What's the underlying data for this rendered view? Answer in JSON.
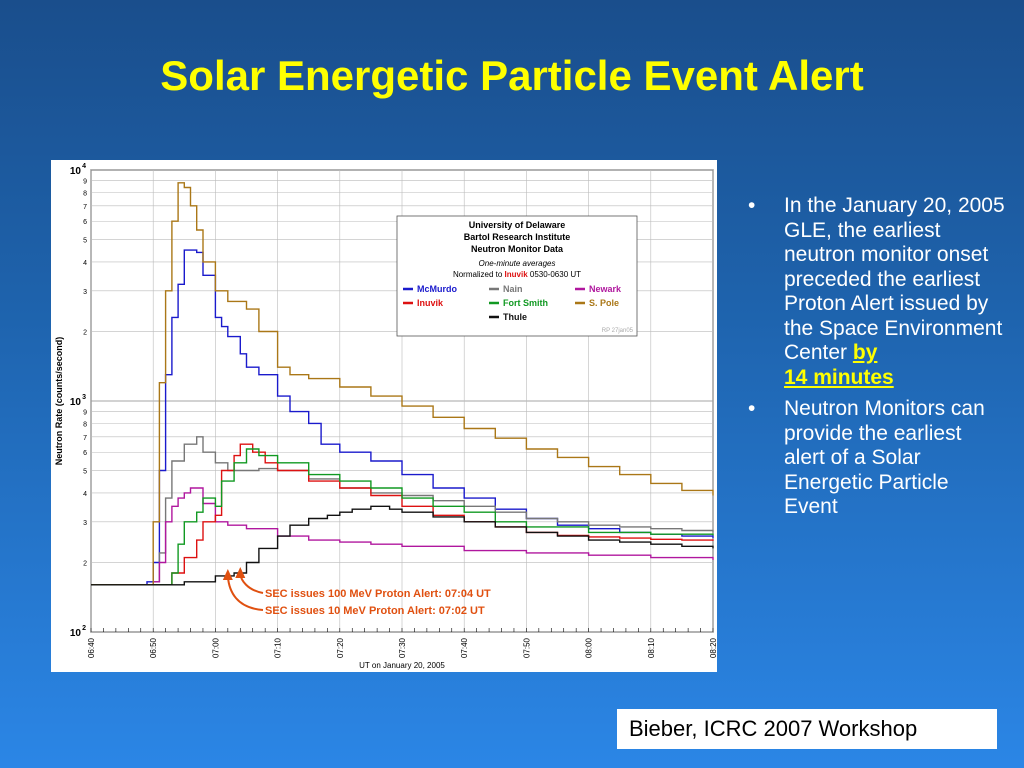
{
  "slide": {
    "title": "Solar Energetic Particle Event Alert",
    "citation": "Bieber, ICRC 2007 Workshop",
    "bullets": [
      {
        "text": "In the January 20, 2005 GLE, the earliest neutron monitor onset preceded the earliest Proton Alert issued by the Space Environment Center",
        "highlight_a": "by",
        "highlight_b": "14 minutes"
      },
      {
        "text": "Neutron Monitors can provide the earliest alert of a Solar Energetic Particle Event"
      }
    ],
    "colors": {
      "title": "#ffff00",
      "background_top": "#1a4e8c",
      "background_bottom": "#2b86e6",
      "highlight": "#ffff00",
      "annotation": "#e05010"
    }
  },
  "chart_data": {
    "type": "line",
    "xlabel": "UT on January 20, 2005",
    "ylabel": "Neutron Rate (counts/second)",
    "x_unit": "UT time",
    "xlim": [
      "06:40",
      "08:20"
    ],
    "x_ticks": [
      "06:40",
      "06:50",
      "07:00",
      "07:10",
      "07:20",
      "07:30",
      "07:40",
      "07:50",
      "08:00",
      "08:10",
      "08:20"
    ],
    "y_scale": "log",
    "ylim": [
      100,
      10000
    ],
    "y_major_ticks": [
      {
        "value": 100,
        "base": "10",
        "exp": "2"
      },
      {
        "value": 1000,
        "base": "10",
        "exp": "3"
      },
      {
        "value": 10000,
        "base": "10",
        "exp": "4"
      }
    ],
    "y_minor_ticks": [
      {
        "value": 200,
        "label": "2"
      },
      {
        "value": 300,
        "label": "3"
      },
      {
        "value": 400,
        "label": "4"
      },
      {
        "value": 500,
        "label": "5"
      },
      {
        "value": 600,
        "label": "6"
      },
      {
        "value": 700,
        "label": "7"
      },
      {
        "value": 800,
        "label": "8"
      },
      {
        "value": 900,
        "label": "9"
      },
      {
        "value": 2000,
        "label": "2"
      },
      {
        "value": 3000,
        "label": "3"
      },
      {
        "value": 4000,
        "label": "4"
      },
      {
        "value": 5000,
        "label": "5"
      },
      {
        "value": 6000,
        "label": "6"
      },
      {
        "value": 7000,
        "label": "7"
      },
      {
        "value": 8000,
        "label": "8"
      },
      {
        "value": 9000,
        "label": "9"
      }
    ],
    "grid": true,
    "legend": {
      "placement": "upper-right",
      "title_lines": [
        "University of Delaware",
        "Bartol Research Institute",
        "Neutron Monitor Data"
      ],
      "subtitle": "One-minute averages",
      "normalized_prefix": "Normalized to ",
      "normalized_station": "Inuvik",
      "normalized_suffix": " 0530-0630 UT",
      "signature": "RP 27jan05"
    },
    "annotations": [
      {
        "text": "SEC issues 100 MeV Proton Alert: 07:04 UT",
        "time": "07:04"
      },
      {
        "text": "SEC issues 10 MeV Proton Alert: 07:02 UT",
        "time": "07:02"
      }
    ],
    "series": [
      {
        "name": "McMurdo",
        "color": "#1a1acc",
        "points": [
          [
            "06:40",
            160
          ],
          [
            "06:45",
            160
          ],
          [
            "06:49",
            165
          ],
          [
            "06:50",
            200
          ],
          [
            "06:51",
            500
          ],
          [
            "06:52",
            1300
          ],
          [
            "06:53",
            2300
          ],
          [
            "06:54",
            3200
          ],
          [
            "06:55",
            4500
          ],
          [
            "06:57",
            4400
          ],
          [
            "06:58",
            3500
          ],
          [
            "07:00",
            2300
          ],
          [
            "07:01",
            2100
          ],
          [
            "07:02",
            1900
          ],
          [
            "07:04",
            1600
          ],
          [
            "07:05",
            1400
          ],
          [
            "07:07",
            1300
          ],
          [
            "07:10",
            1050
          ],
          [
            "07:12",
            900
          ],
          [
            "07:15",
            800
          ],
          [
            "07:17",
            650
          ],
          [
            "07:20",
            600
          ],
          [
            "07:25",
            550
          ],
          [
            "07:30",
            480
          ],
          [
            "07:35",
            420
          ],
          [
            "07:40",
            380
          ],
          [
            "07:45",
            340
          ],
          [
            "07:50",
            310
          ],
          [
            "07:55",
            290
          ],
          [
            "08:00",
            280
          ],
          [
            "08:05",
            270
          ],
          [
            "08:10",
            265
          ],
          [
            "08:15",
            260
          ],
          [
            "08:20",
            255
          ]
        ]
      },
      {
        "name": "Nain",
        "color": "#777777",
        "points": [
          [
            "06:40",
            160
          ],
          [
            "06:50",
            165
          ],
          [
            "06:51",
            220
          ],
          [
            "06:52",
            380
          ],
          [
            "06:53",
            550
          ],
          [
            "06:55",
            650
          ],
          [
            "06:57",
            700
          ],
          [
            "06:58",
            600
          ],
          [
            "07:00",
            540
          ],
          [
            "07:02",
            500
          ],
          [
            "07:05",
            500
          ],
          [
            "07:07",
            510
          ],
          [
            "07:10",
            500
          ],
          [
            "07:15",
            460
          ],
          [
            "07:20",
            420
          ],
          [
            "07:25",
            400
          ],
          [
            "07:30",
            390
          ],
          [
            "07:35",
            370
          ],
          [
            "07:40",
            350
          ],
          [
            "07:45",
            330
          ],
          [
            "07:50",
            310
          ],
          [
            "07:55",
            300
          ],
          [
            "08:00",
            290
          ],
          [
            "08:05",
            285
          ],
          [
            "08:10",
            280
          ],
          [
            "08:15",
            275
          ],
          [
            "08:20",
            270
          ]
        ]
      },
      {
        "name": "Newark",
        "color": "#b0179e",
        "points": [
          [
            "06:40",
            160
          ],
          [
            "06:50",
            165
          ],
          [
            "06:51",
            200
          ],
          [
            "06:52",
            300
          ],
          [
            "06:53",
            350
          ],
          [
            "06:54",
            380
          ],
          [
            "06:55",
            400
          ],
          [
            "06:56",
            420
          ],
          [
            "06:58",
            360
          ],
          [
            "07:00",
            300
          ],
          [
            "07:02",
            290
          ],
          [
            "07:05",
            280
          ],
          [
            "07:10",
            260
          ],
          [
            "07:15",
            250
          ],
          [
            "07:20",
            245
          ],
          [
            "07:25",
            240
          ],
          [
            "07:30",
            235
          ],
          [
            "07:40",
            225
          ],
          [
            "07:50",
            220
          ],
          [
            "08:00",
            215
          ],
          [
            "08:10",
            210
          ],
          [
            "08:20",
            205
          ]
        ]
      },
      {
        "name": "Inuvik",
        "color": "#dd1111",
        "points": [
          [
            "06:40",
            160
          ],
          [
            "06:52",
            160
          ],
          [
            "06:53",
            180
          ],
          [
            "06:55",
            210
          ],
          [
            "06:57",
            250
          ],
          [
            "06:58",
            300
          ],
          [
            "07:00",
            320
          ],
          [
            "07:01",
            500
          ],
          [
            "07:03",
            580
          ],
          [
            "07:04",
            650
          ],
          [
            "07:06",
            600
          ],
          [
            "07:08",
            540
          ],
          [
            "07:10",
            500
          ],
          [
            "07:15",
            450
          ],
          [
            "07:20",
            420
          ],
          [
            "07:25",
            390
          ],
          [
            "07:30",
            350
          ],
          [
            "07:35",
            320
          ],
          [
            "07:40",
            300
          ],
          [
            "07:45",
            285
          ],
          [
            "07:50",
            270
          ],
          [
            "07:55",
            262
          ],
          [
            "08:00",
            258
          ],
          [
            "08:05",
            255
          ],
          [
            "08:10",
            252
          ],
          [
            "08:15",
            250
          ],
          [
            "08:20",
            248
          ]
        ]
      },
      {
        "name": "Fort Smith",
        "color": "#119922",
        "points": [
          [
            "06:40",
            160
          ],
          [
            "06:52",
            160
          ],
          [
            "06:53",
            180
          ],
          [
            "06:54",
            240
          ],
          [
            "06:55",
            300
          ],
          [
            "06:57",
            330
          ],
          [
            "06:58",
            380
          ],
          [
            "07:00",
            350
          ],
          [
            "07:01",
            450
          ],
          [
            "07:03",
            540
          ],
          [
            "07:05",
            620
          ],
          [
            "07:07",
            580
          ],
          [
            "07:10",
            540
          ],
          [
            "07:15",
            480
          ],
          [
            "07:20",
            450
          ],
          [
            "07:25",
            420
          ],
          [
            "07:30",
            380
          ],
          [
            "07:35",
            350
          ],
          [
            "07:40",
            330
          ],
          [
            "07:45",
            300
          ],
          [
            "07:50",
            285
          ],
          [
            "08:00",
            270
          ],
          [
            "08:10",
            265
          ],
          [
            "08:20",
            262
          ]
        ]
      },
      {
        "name": "S. Pole",
        "color": "#aa7717",
        "points": [
          [
            "06:40",
            160
          ],
          [
            "06:49",
            160
          ],
          [
            "06:50",
            300
          ],
          [
            "06:51",
            1200
          ],
          [
            "06:52",
            3000
          ],
          [
            "06:53",
            6000
          ],
          [
            "06:54",
            8800
          ],
          [
            "06:55",
            8400
          ],
          [
            "06:56",
            7000
          ],
          [
            "06:57",
            5500
          ],
          [
            "06:58",
            4000
          ],
          [
            "07:00",
            3000
          ],
          [
            "07:02",
            2700
          ],
          [
            "07:05",
            2500
          ],
          [
            "07:07",
            2000
          ],
          [
            "07:10",
            1400
          ],
          [
            "07:12",
            1300
          ],
          [
            "07:15",
            1250
          ],
          [
            "07:20",
            1150
          ],
          [
            "07:25",
            1050
          ],
          [
            "07:30",
            950
          ],
          [
            "07:35",
            850
          ],
          [
            "07:40",
            760
          ],
          [
            "07:45",
            690
          ],
          [
            "07:50",
            620
          ],
          [
            "07:55",
            570
          ],
          [
            "08:00",
            520
          ],
          [
            "08:05",
            480
          ],
          [
            "08:10",
            440
          ],
          [
            "08:15",
            410
          ],
          [
            "08:20",
            390
          ]
        ]
      },
      {
        "name": "Thule",
        "color": "#111111",
        "points": [
          [
            "06:40",
            160
          ],
          [
            "06:50",
            160
          ],
          [
            "06:55",
            165
          ],
          [
            "07:00",
            175
          ],
          [
            "07:03",
            180
          ],
          [
            "07:05",
            200
          ],
          [
            "07:07",
            230
          ],
          [
            "07:10",
            260
          ],
          [
            "07:12",
            290
          ],
          [
            "07:15",
            310
          ],
          [
            "07:18",
            320
          ],
          [
            "07:20",
            330
          ],
          [
            "07:22",
            340
          ],
          [
            "07:25",
            350
          ],
          [
            "07:28",
            340
          ],
          [
            "07:30",
            330
          ],
          [
            "07:35",
            315
          ],
          [
            "07:40",
            300
          ],
          [
            "07:45",
            285
          ],
          [
            "07:50",
            270
          ],
          [
            "07:55",
            260
          ],
          [
            "08:00",
            250
          ],
          [
            "08:05",
            245
          ],
          [
            "08:10",
            240
          ],
          [
            "08:15",
            235
          ],
          [
            "08:20",
            230
          ]
        ]
      }
    ]
  }
}
